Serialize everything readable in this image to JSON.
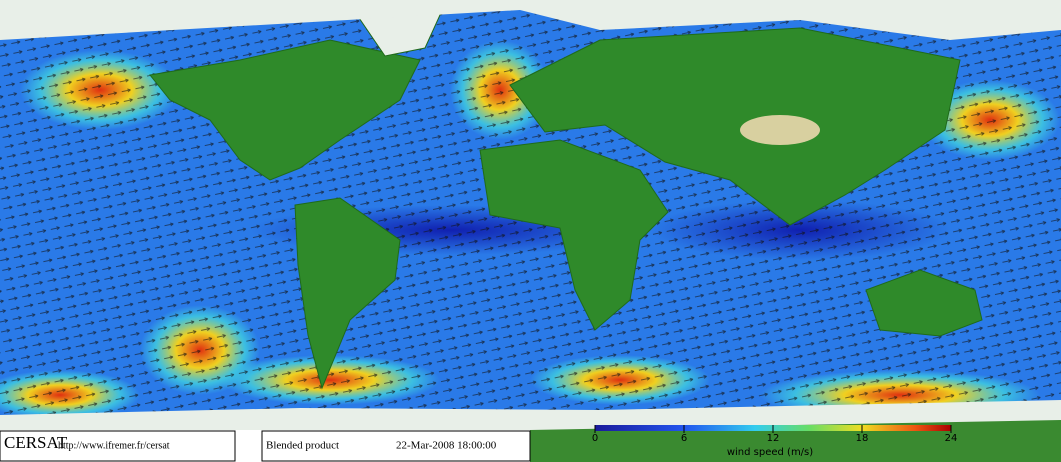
{
  "header": {
    "logo": "CERSAT",
    "url": "http://www.ifremer.fr/cersat"
  },
  "product": {
    "name": "Blended product",
    "date": "22-Mar-2008 18:00:00"
  },
  "colorbar": {
    "label": "wind speed (m/s)",
    "range": [
      0,
      24
    ],
    "ticks": [
      0,
      6,
      12,
      18,
      24
    ]
  }
}
